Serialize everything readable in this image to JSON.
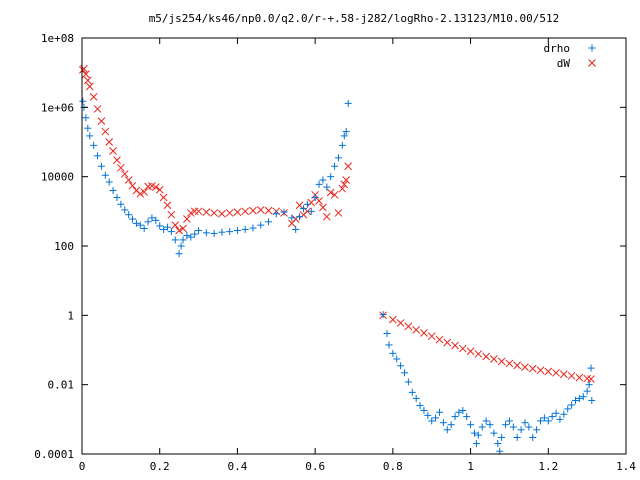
{
  "chart_data": {
    "type": "scatter",
    "title": "m5/js254/ks46/np0.0/q2.0/r-+.58-j282/logRho-2.13123/M10.00/512",
    "xlabel": "",
    "ylabel": "",
    "xlim": [
      0,
      1.4
    ],
    "ylim": [
      0.0001,
      100000000
    ],
    "yscale": "log",
    "grid": false,
    "legend_position": "top-right",
    "x_ticks": [
      0,
      0.2,
      0.4,
      0.6,
      0.8,
      1,
      1.2,
      1.4
    ],
    "x_tick_labels": [
      "0",
      "0.2",
      "0.4",
      "0.6",
      "0.8",
      "1",
      "1.2",
      "1.4"
    ],
    "y_ticks": [
      0.0001,
      0.01,
      1,
      100,
      10000,
      1000000,
      100000000
    ],
    "y_tick_labels": [
      "0.0001",
      "0.01",
      "1",
      "100",
      "10000",
      "1e+06",
      "1e+08"
    ],
    "series": [
      {
        "name": "drho",
        "marker": "plus",
        "color": "#0072d6",
        "points": [
          [
            0.002,
            1500000
          ],
          [
            0.005,
            1000000
          ],
          [
            0.01,
            500000
          ],
          [
            0.015,
            250000
          ],
          [
            0.02,
            150000
          ],
          [
            0.03,
            80000
          ],
          [
            0.04,
            40000
          ],
          [
            0.05,
            20000
          ],
          [
            0.06,
            11000
          ],
          [
            0.07,
            7000
          ],
          [
            0.08,
            4000
          ],
          [
            0.09,
            2500
          ],
          [
            0.1,
            1600
          ],
          [
            0.11,
            1100
          ],
          [
            0.12,
            800
          ],
          [
            0.13,
            600
          ],
          [
            0.14,
            450
          ],
          [
            0.15,
            400
          ],
          [
            0.16,
            320
          ],
          [
            0.17,
            500
          ],
          [
            0.18,
            650
          ],
          [
            0.19,
            550
          ],
          [
            0.2,
            380
          ],
          [
            0.21,
            300
          ],
          [
            0.22,
            350
          ],
          [
            0.23,
            260
          ],
          [
            0.24,
            150
          ],
          [
            0.25,
            60
          ],
          [
            0.255,
            100
          ],
          [
            0.26,
            150
          ],
          [
            0.27,
            200
          ],
          [
            0.28,
            180
          ],
          [
            0.29,
            220
          ],
          [
            0.3,
            280
          ],
          [
            0.32,
            240
          ],
          [
            0.34,
            230
          ],
          [
            0.36,
            250
          ],
          [
            0.38,
            260
          ],
          [
            0.4,
            280
          ],
          [
            0.42,
            300
          ],
          [
            0.44,
            330
          ],
          [
            0.46,
            400
          ],
          [
            0.48,
            500
          ],
          [
            0.5,
            850
          ],
          [
            0.52,
            950
          ],
          [
            0.54,
            650
          ],
          [
            0.55,
            300
          ],
          [
            0.56,
            700
          ],
          [
            0.57,
            1200
          ],
          [
            0.58,
            1600
          ],
          [
            0.59,
            1000
          ],
          [
            0.6,
            2500
          ],
          [
            0.61,
            6000
          ],
          [
            0.62,
            8000
          ],
          [
            0.63,
            5000
          ],
          [
            0.64,
            10000
          ],
          [
            0.65,
            20000
          ],
          [
            0.66,
            35000
          ],
          [
            0.67,
            80000
          ],
          [
            0.675,
            150000
          ],
          [
            0.68,
            200000
          ],
          [
            0.685,
            1300000
          ],
          [
            0.775,
            1.05
          ],
          [
            0.785,
            0.3
          ],
          [
            0.79,
            0.14
          ],
          [
            0.8,
            0.08
          ],
          [
            0.81,
            0.055
          ],
          [
            0.82,
            0.035
          ],
          [
            0.83,
            0.022
          ],
          [
            0.84,
            0.012
          ],
          [
            0.85,
            0.006
          ],
          [
            0.86,
            0.004
          ],
          [
            0.87,
            0.0025
          ],
          [
            0.88,
            0.0018
          ],
          [
            0.89,
            0.0013
          ],
          [
            0.9,
            0.0009
          ],
          [
            0.91,
            0.0011
          ],
          [
            0.92,
            0.0016
          ],
          [
            0.93,
            0.0008
          ],
          [
            0.94,
            0.0005
          ],
          [
            0.95,
            0.0007
          ],
          [
            0.96,
            0.0012
          ],
          [
            0.97,
            0.0016
          ],
          [
            0.98,
            0.0018
          ],
          [
            0.99,
            0.0012
          ],
          [
            1.0,
            0.0007
          ],
          [
            1.01,
            0.0004
          ],
          [
            1.015,
            0.0002
          ],
          [
            1.02,
            0.00035
          ],
          [
            1.03,
            0.0006
          ],
          [
            1.04,
            0.0009
          ],
          [
            1.05,
            0.0007
          ],
          [
            1.06,
            0.0004
          ],
          [
            1.07,
            0.0002
          ],
          [
            1.075,
            0.00012
          ],
          [
            1.08,
            0.0003
          ],
          [
            1.09,
            0.0007
          ],
          [
            1.1,
            0.0009
          ],
          [
            1.11,
            0.0006
          ],
          [
            1.12,
            0.0003
          ],
          [
            1.13,
            0.0005
          ],
          [
            1.14,
            0.0008
          ],
          [
            1.15,
            0.0006
          ],
          [
            1.16,
            0.0003
          ],
          [
            1.17,
            0.0005
          ],
          [
            1.18,
            0.0009
          ],
          [
            1.19,
            0.0011
          ],
          [
            1.2,
            0.0009
          ],
          [
            1.21,
            0.0012
          ],
          [
            1.22,
            0.0015
          ],
          [
            1.23,
            0.001
          ],
          [
            1.24,
            0.0014
          ],
          [
            1.25,
            0.002
          ],
          [
            1.26,
            0.0026
          ],
          [
            1.27,
            0.0035
          ],
          [
            1.28,
            0.004
          ],
          [
            1.29,
            0.0045
          ],
          [
            1.3,
            0.0065
          ],
          [
            1.305,
            0.01
          ],
          [
            1.31,
            0.03
          ],
          [
            1.312,
            0.0035
          ]
        ]
      },
      {
        "name": "dW",
        "marker": "cross",
        "color": "#e8241c",
        "points": [
          [
            0.002,
            12000000
          ],
          [
            0.005,
            13000000
          ],
          [
            0.01,
            9000000
          ],
          [
            0.015,
            6000000
          ],
          [
            0.02,
            4000000
          ],
          [
            0.03,
            2000000
          ],
          [
            0.04,
            900000
          ],
          [
            0.05,
            400000
          ],
          [
            0.06,
            200000
          ],
          [
            0.07,
            100000
          ],
          [
            0.08,
            55000
          ],
          [
            0.09,
            30000
          ],
          [
            0.1,
            18000
          ],
          [
            0.11,
            12000
          ],
          [
            0.12,
            8000
          ],
          [
            0.13,
            5500
          ],
          [
            0.14,
            4000
          ],
          [
            0.15,
            3200
          ],
          [
            0.16,
            3600
          ],
          [
            0.17,
            5200
          ],
          [
            0.18,
            5400
          ],
          [
            0.19,
            5000
          ],
          [
            0.2,
            4200
          ],
          [
            0.21,
            2500
          ],
          [
            0.22,
            1500
          ],
          [
            0.23,
            800
          ],
          [
            0.24,
            400
          ],
          [
            0.25,
            280
          ],
          [
            0.26,
            320
          ],
          [
            0.27,
            600
          ],
          [
            0.28,
            900
          ],
          [
            0.29,
            1000
          ],
          [
            0.3,
            1000
          ],
          [
            0.32,
            950
          ],
          [
            0.34,
            900
          ],
          [
            0.36,
            850
          ],
          [
            0.38,
            900
          ],
          [
            0.4,
            950
          ],
          [
            0.42,
            1000
          ],
          [
            0.44,
            1050
          ],
          [
            0.46,
            1100
          ],
          [
            0.48,
            1050
          ],
          [
            0.5,
            1000
          ],
          [
            0.52,
            900
          ],
          [
            0.54,
            450
          ],
          [
            0.55,
            600
          ],
          [
            0.56,
            1500
          ],
          [
            0.57,
            800
          ],
          [
            0.58,
            1000
          ],
          [
            0.59,
            1800
          ],
          [
            0.6,
            3000
          ],
          [
            0.61,
            2000
          ],
          [
            0.62,
            1300
          ],
          [
            0.63,
            700
          ],
          [
            0.64,
            3500
          ],
          [
            0.65,
            3000
          ],
          [
            0.66,
            900
          ],
          [
            0.67,
            4500
          ],
          [
            0.675,
            6000
          ],
          [
            0.68,
            8000
          ],
          [
            0.685,
            20000
          ],
          [
            0.775,
            1.0
          ],
          [
            0.8,
            0.75
          ],
          [
            0.82,
            0.6
          ],
          [
            0.84,
            0.48
          ],
          [
            0.86,
            0.38
          ],
          [
            0.88,
            0.31
          ],
          [
            0.9,
            0.25
          ],
          [
            0.92,
            0.2
          ],
          [
            0.94,
            0.165
          ],
          [
            0.96,
            0.135
          ],
          [
            0.98,
            0.11
          ],
          [
            1.0,
            0.092
          ],
          [
            1.02,
            0.077
          ],
          [
            1.04,
            0.065
          ],
          [
            1.06,
            0.055
          ],
          [
            1.08,
            0.047
          ],
          [
            1.1,
            0.041
          ],
          [
            1.12,
            0.036
          ],
          [
            1.14,
            0.032
          ],
          [
            1.16,
            0.029
          ],
          [
            1.18,
            0.026
          ],
          [
            1.2,
            0.024
          ],
          [
            1.22,
            0.022
          ],
          [
            1.24,
            0.02
          ],
          [
            1.26,
            0.018
          ],
          [
            1.28,
            0.016
          ],
          [
            1.3,
            0.015
          ],
          [
            1.31,
            0.0145
          ]
        ]
      }
    ]
  }
}
